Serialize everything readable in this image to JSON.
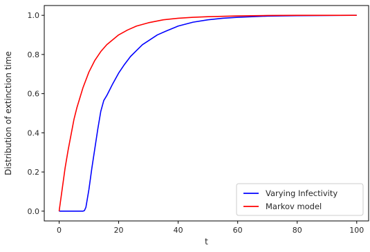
{
  "chart_data": {
    "type": "line",
    "title": "",
    "xlabel": "t",
    "ylabel": "Distribution of extinction time",
    "xlim": [
      -5,
      104
    ],
    "ylim": [
      -0.05,
      1.05
    ],
    "xticks": [
      0,
      20,
      40,
      60,
      80,
      100
    ],
    "yticks": [
      0.0,
      0.2,
      0.4,
      0.6,
      0.8,
      1.0
    ],
    "xtick_labels": [
      "0",
      "20",
      "40",
      "60",
      "80",
      "100"
    ],
    "ytick_labels": [
      "0.0",
      "0.2",
      "0.4",
      "0.6",
      "0.8",
      "1.0"
    ],
    "grid": false,
    "legend_position": "lower-right",
    "series": [
      {
        "name": "Varying Infectivity",
        "color": "#0000ff",
        "x": [
          0,
          4,
          8,
          8.5,
          9,
          10,
          11,
          12,
          13,
          14,
          15,
          16,
          17,
          18,
          20,
          22,
          24,
          26,
          28,
          30,
          33,
          36,
          40,
          45,
          50,
          55,
          60,
          70,
          80,
          90,
          100
        ],
        "y": [
          0.0,
          0.0,
          0.0,
          0.003,
          0.02,
          0.11,
          0.22,
          0.32,
          0.42,
          0.51,
          0.565,
          0.59,
          0.62,
          0.65,
          0.705,
          0.75,
          0.79,
          0.82,
          0.85,
          0.87,
          0.9,
          0.92,
          0.945,
          0.965,
          0.977,
          0.985,
          0.99,
          0.996,
          0.998,
          0.999,
          1.0
        ]
      },
      {
        "name": "Markov model",
        "color": "#ff0000",
        "x": [
          0,
          1,
          2,
          3,
          4,
          5,
          6,
          8,
          10,
          12,
          14,
          16,
          18,
          20,
          23,
          26,
          30,
          35,
          40,
          45,
          50,
          60,
          70,
          80,
          90,
          100
        ],
        "y": [
          0.0,
          0.11,
          0.22,
          0.31,
          0.39,
          0.47,
          0.53,
          0.63,
          0.71,
          0.77,
          0.815,
          0.85,
          0.875,
          0.9,
          0.925,
          0.945,
          0.962,
          0.977,
          0.985,
          0.99,
          0.993,
          0.997,
          0.999,
          1.0,
          1.0,
          1.0
        ]
      }
    ]
  }
}
